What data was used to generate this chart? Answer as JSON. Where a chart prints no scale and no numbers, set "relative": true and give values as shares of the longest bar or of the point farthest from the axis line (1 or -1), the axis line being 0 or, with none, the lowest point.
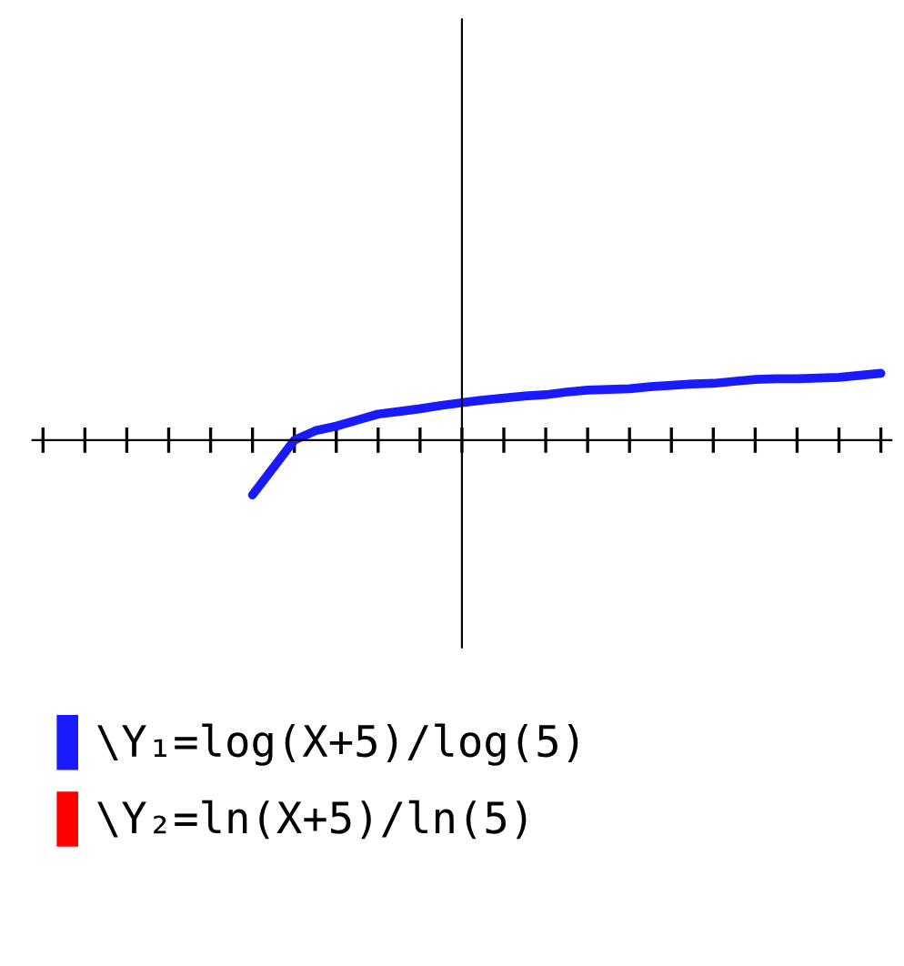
{
  "chart_data": {
    "type": "line",
    "relative": true,
    "legend": "bottom",
    "grid": false,
    "marker": "none",
    "line_style": "solid",
    "categories": [
      null,
      null,
      null,
      null,
      null,
      null,
      null,
      null,
      null,
      null,
      null,
      null,
      null,
      null,
      null,
      null,
      null,
      null,
      null,
      null,
      null,
      null,
      null,
      null,
      null,
      null,
      null,
      null,
      null,
      null,
      null,
      null,
      null,
      null,
      null,
      null,
      null,
      null,
      null,
      null,
      null
    ],
    "series": [
      {
        "name": "\\Y₁=log(X+5)/log(5)",
        "color": "#1a1aff",
        "values": [
          null,
          null,
          null,
          null,
          null,
          null,
          null,
          null,
          null,
          null,
          -0.82,
          -0.41,
          0,
          0.14,
          0.21,
          0.3,
          0.39,
          0.43,
          0.47,
          0.52,
          0.56,
          0.6,
          0.63,
          0.66,
          0.68,
          0.72,
          0.75,
          0.76,
          0.77,
          0.8,
          0.82,
          0.84,
          0.85,
          0.88,
          0.91,
          0.92,
          0.92,
          0.93,
          0.94,
          0.97,
          1.0
        ]
      },
      {
        "name": "\\Y₂=ln(X+5)/ln(5)",
        "color": "#ff0000",
        "values": [
          null,
          null,
          null,
          null,
          null,
          null,
          null,
          null,
          null,
          null,
          null,
          null,
          null,
          null,
          null,
          null,
          null,
          null,
          null,
          null,
          null,
          null,
          null,
          null,
          null,
          null,
          null,
          null,
          null,
          null,
          null,
          null,
          null,
          null,
          null,
          null,
          null,
          null,
          null,
          null,
          null
        ]
      }
    ]
  }
}
